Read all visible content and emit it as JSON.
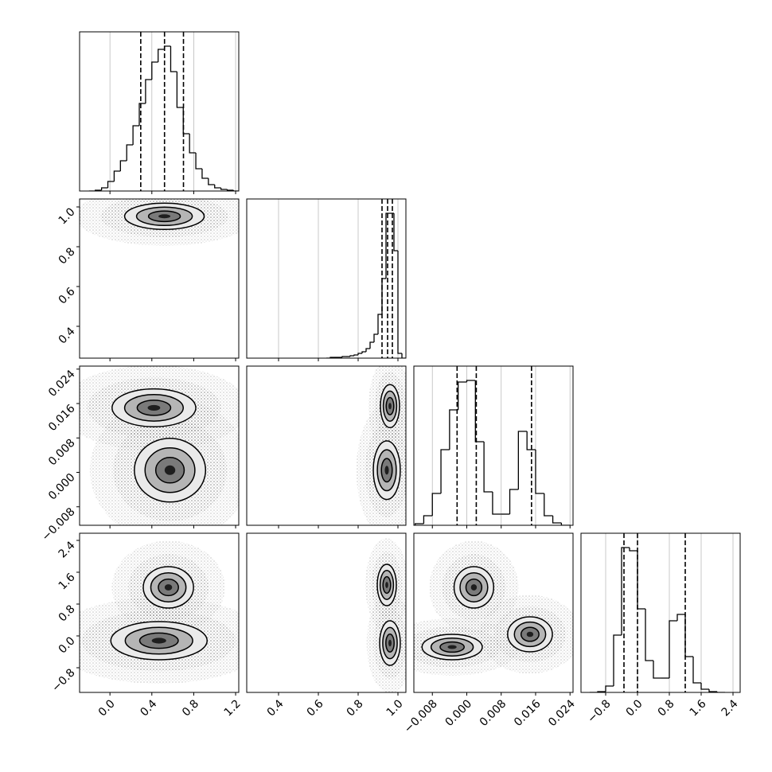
{
  "chart_data": {
    "type": "corner",
    "params": [
      {
        "lim": [
          -0.29,
          1.23
        ],
        "ticks": [
          {
            "value": 0,
            "label": "0.0"
          },
          0.4,
          0.8,
          1.2
        ]
      },
      {
        "lim": [
          0.24,
          1.04
        ],
        "ticks": [
          0.4,
          0.6,
          0.8,
          {
            "value": 1,
            "label": "1.0"
          }
        ]
      },
      {
        "lim": [
          -0.0123,
          0.0247
        ],
        "ticks": [
          {
            "value": -0.008,
            "label": "−0.008"
          },
          {
            "value": 0,
            "label": "0.000"
          },
          0.008,
          0.016,
          0.024
        ]
      },
      {
        "lim": [
          -1.42,
          2.58
        ],
        "ticks": [
          {
            "value": -0.8,
            "label": "−0.8"
          },
          {
            "value": 0,
            "label": "0.0"
          },
          0.8,
          1.6,
          2.4
        ]
      }
    ],
    "grid": true,
    "histograms": [
      {
        "ylim": [
          0,
          200
        ],
        "bins": [
          -0.2,
          -0.14,
          -0.08,
          -0.02,
          0.04,
          0.1,
          0.16,
          0.22,
          0.28,
          0.34,
          0.4,
          0.46,
          0.52,
          0.58,
          0.64,
          0.7,
          0.76,
          0.82,
          0.88,
          0.94,
          1.0,
          1.06,
          1.12,
          1.18,
          1.24
        ],
        "values": [
          0,
          1,
          4,
          12,
          25,
          38,
          58,
          82,
          110,
          140,
          162,
          178,
          182,
          150,
          105,
          72,
          48,
          28,
          16,
          8,
          4,
          2,
          1,
          0
        ],
        "quantiles": [
          0.294,
          0.521,
          0.702
        ]
      },
      {
        "ylim": [
          0,
          200
        ],
        "bins": [
          0.64,
          0.66,
          0.68,
          0.7,
          0.72,
          0.74,
          0.76,
          0.78,
          0.8,
          0.82,
          0.84,
          0.86,
          0.88,
          0.9,
          0.92,
          0.94,
          0.96,
          0.98,
          1.0,
          1.02,
          1.04
        ],
        "values": [
          0,
          1,
          1,
          1,
          2,
          2,
          3,
          4,
          6,
          8,
          12,
          20,
          30,
          55,
          100,
          182,
          182,
          135,
          6,
          0
        ],
        "quantiles": [
          0.92,
          0.948,
          0.972
        ]
      },
      {
        "ylim": [
          0,
          200
        ],
        "bins": [
          -0.012,
          -0.01,
          -0.008,
          -0.006,
          -0.004,
          -0.002,
          0.0,
          0.002,
          0.004,
          0.006,
          0.008,
          0.01,
          0.012,
          0.014,
          0.016,
          0.018,
          0.02,
          0.022,
          0.024
        ],
        "values": [
          2,
          12,
          40,
          95,
          145,
          180,
          182,
          105,
          42,
          14,
          14,
          45,
          118,
          95,
          40,
          12,
          3,
          0
        ],
        "quantiles": [
          -0.00225,
          0.00221,
          0.01505
        ]
      },
      {
        "ylim": [
          0,
          200
        ],
        "bins": [
          -1.2,
          -1.0,
          -0.8,
          -0.6,
          -0.4,
          -0.2,
          0.0,
          0.2,
          0.4,
          0.6,
          0.8,
          1.0,
          1.2,
          1.4,
          1.6,
          1.8,
          2.0,
          2.2
        ],
        "values": [
          0,
          1,
          8,
          72,
          182,
          178,
          105,
          40,
          18,
          18,
          90,
          98,
          45,
          12,
          4,
          1,
          0
        ],
        "quantiles": [
          -0.34,
          0.0,
          1.2
        ]
      }
    ],
    "density": [
      [
        [
          {
            "x": 0.52,
            "y": 0.953,
            "sx": 0.19,
            "sy": 0.033
          }
        ]
      ],
      [
        [
          {
            "x": 0.42,
            "y": 0.015,
            "sx": 0.2,
            "sy": 0.0022
          },
          {
            "x": 0.573,
            "y": 0.0005,
            "sx": 0.17,
            "sy": 0.0037
          }
        ],
        [
          {
            "x": 0.96,
            "y": 0.0154,
            "sx": 0.024,
            "sy": 0.0025
          },
          {
            "x": 0.944,
            "y": 0.0005,
            "sx": 0.034,
            "sy": 0.0034
          }
        ]
      ],
      [
        [
          {
            "x": 0.558,
            "y": 1.22,
            "sx": 0.12,
            "sy": 0.26
          },
          {
            "x": 0.468,
            "y": -0.12,
            "sx": 0.23,
            "sy": 0.24
          }
        ],
        [
          {
            "x": 0.944,
            "y": 1.28,
            "sx": 0.024,
            "sy": 0.26
          },
          {
            "x": 0.96,
            "y": -0.18,
            "sx": 0.026,
            "sy": 0.28
          }
        ],
        [
          {
            "x": 0.00165,
            "y": 1.22,
            "sx": 0.0023,
            "sy": 0.26
          },
          {
            "x": -0.0034,
            "y": -0.28,
            "sx": 0.0035,
            "sy": 0.16
          },
          {
            "x": 0.0147,
            "y": 0.04,
            "sx": 0.0026,
            "sy": 0.22
          }
        ]
      ]
    ]
  }
}
